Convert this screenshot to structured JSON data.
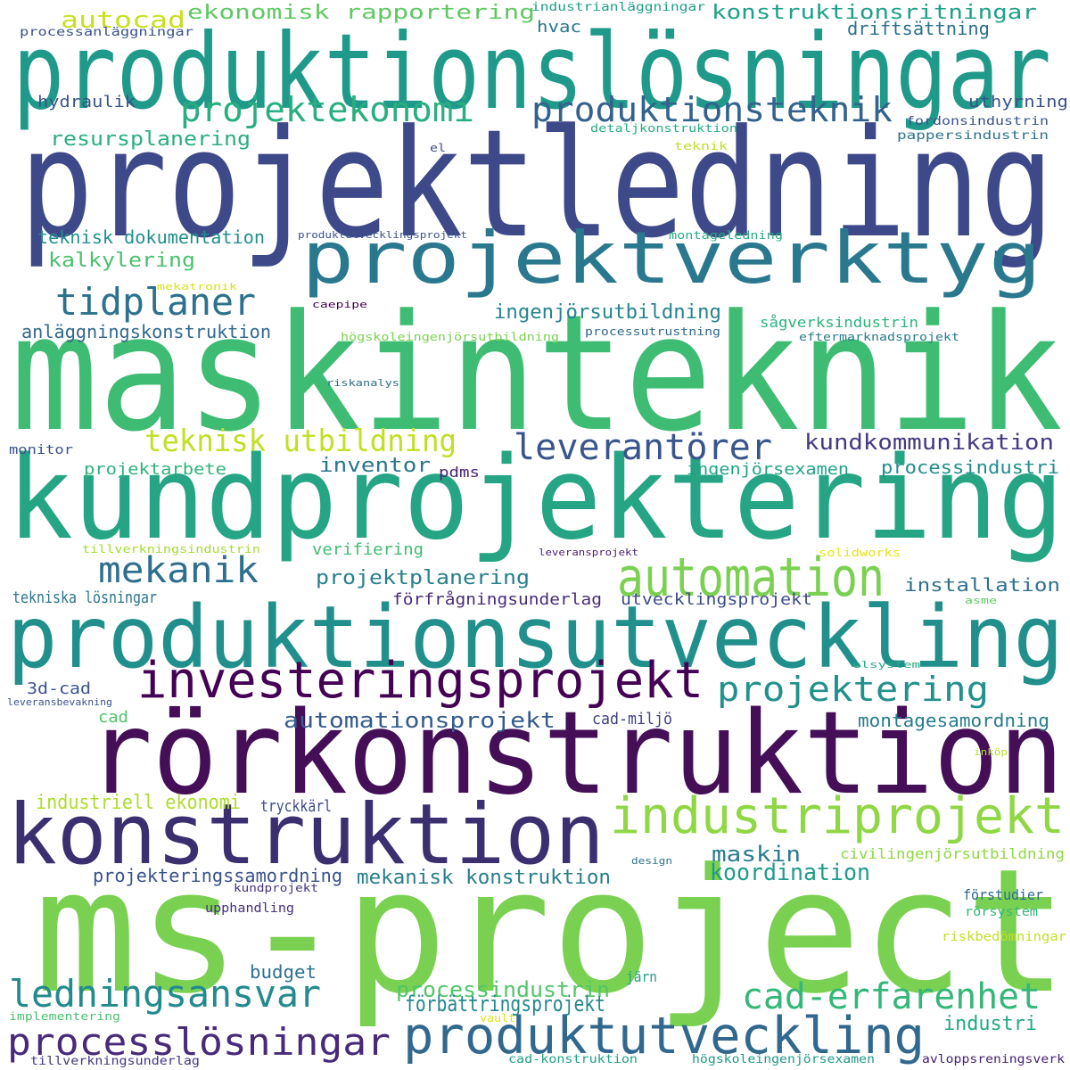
{
  "words": [
    {
      "text": "produktionslösningar",
      "color": "#1f9a8a"
    },
    {
      "text": "projektledning",
      "color": "#3e4989"
    },
    {
      "text": "maskinteknik",
      "color": "#3fbc73"
    },
    {
      "text": "kundprojektering",
      "color": "#25a584"
    },
    {
      "text": "produktionsutveckling",
      "color": "#21908d"
    },
    {
      "text": "rörkonstruktion",
      "color": "#440f56"
    },
    {
      "text": "ms-project",
      "color": "#7ad151"
    },
    {
      "text": "konstruktion",
      "color": "#3b2f70"
    },
    {
      "text": "projektverktyg",
      "color": "#2a788e"
    },
    {
      "text": "industriprojekt",
      "color": "#8fd744"
    },
    {
      "text": "investeringsprojekt",
      "color": "#440154"
    },
    {
      "text": "automation",
      "color": "#7ad151"
    },
    {
      "text": "produktutveckling",
      "color": "#31688e"
    },
    {
      "text": "processlösningar",
      "color": "#472a7a"
    },
    {
      "text": "ledningsansvar",
      "color": "#238a8d"
    },
    {
      "text": "cad-erfarenhet",
      "color": "#35b779"
    },
    {
      "text": "tidplaner",
      "color": "#2c728e"
    },
    {
      "text": "projektekonomi",
      "color": "#29af7f"
    },
    {
      "text": "produktionsteknik",
      "color": "#33628d"
    },
    {
      "text": "leverantörer",
      "color": "#39558c"
    },
    {
      "text": "mekanik",
      "color": "#2e6f8e"
    },
    {
      "text": "projektering",
      "color": "#21918c"
    },
    {
      "text": "teknisk utbildning",
      "color": "#c2df23"
    },
    {
      "text": "automationsprojekt",
      "color": "#365c8d"
    },
    {
      "text": "mekanisk konstruktion",
      "color": "#287d8e"
    },
    {
      "text": "koordination",
      "color": "#1e9b8a"
    },
    {
      "text": "maskin",
      "color": "#297b8e"
    },
    {
      "text": "processindustrin",
      "color": "#52c569"
    },
    {
      "text": "förbättringsprojekt",
      "color": "#24878e"
    },
    {
      "text": "industri",
      "color": "#22a884"
    },
    {
      "text": "montagesamordning",
      "color": "#287c8e"
    },
    {
      "text": "kundkommunikation",
      "color": "#443a83"
    },
    {
      "text": "ingenjörsutbildning",
      "color": "#25848e"
    },
    {
      "text": "projektplanering",
      "color": "#277f8e"
    },
    {
      "text": "industriell ekonomi",
      "color": "#addc30"
    },
    {
      "text": "projekteringssamordning",
      "color": "#3b528b"
    },
    {
      "text": "ekonomisk rapportering",
      "color": "#5ec962"
    },
    {
      "text": "konstruktionsritningar",
      "color": "#1fa188"
    },
    {
      "text": "autocad",
      "color": "#c8e020"
    },
    {
      "text": "driftsättning",
      "color": "#2c718e"
    },
    {
      "text": "resursplanering",
      "color": "#29af7f"
    },
    {
      "text": "teknisk dokumentation",
      "color": "#218f8d"
    },
    {
      "text": "kalkylering",
      "color": "#4ac16d"
    },
    {
      "text": "anläggningskonstruktion",
      "color": "#31688e"
    },
    {
      "text": "inventor",
      "color": "#2a768e"
    },
    {
      "text": "installation",
      "color": "#2d708e"
    },
    {
      "text": "processindustri",
      "color": "#218e8d"
    },
    {
      "text": "ingenjörsexamen",
      "color": "#20a486"
    },
    {
      "text": "projektarbete",
      "color": "#2eb37c"
    },
    {
      "text": "verifiering",
      "color": "#40bd72"
    },
    {
      "text": "förfrågningsunderlag",
      "color": "#472c7a"
    },
    {
      "text": "utvecklingsprojekt",
      "color": "#3e4c8a"
    },
    {
      "text": "tekniska lösningar",
      "color": "#2c738e"
    },
    {
      "text": "budget",
      "color": "#2d718e"
    },
    {
      "text": "hydraulik",
      "color": "#3b528b"
    },
    {
      "text": "uthyrning",
      "color": "#3b528b"
    },
    {
      "text": "hvac",
      "color": "#2a778e"
    },
    {
      "text": "sågverksindustrin",
      "color": "#2db27d"
    },
    {
      "text": "cad-miljö",
      "color": "#424186"
    },
    {
      "text": "tryckkärl",
      "color": "#3e4a89"
    },
    {
      "text": "3d-cad",
      "color": "#3b528b"
    },
    {
      "text": "cad",
      "color": "#52c569"
    },
    {
      "text": "pdms",
      "color": "#482475"
    },
    {
      "text": "upphandling",
      "color": "#472f7d"
    },
    {
      "text": "förstudier",
      "color": "#31688e"
    },
    {
      "text": "civilingenjörsutbildning",
      "color": "#8fd744"
    },
    {
      "text": "kundprojekt",
      "color": "#46337e"
    },
    {
      "text": "rörsystem",
      "color": "#35b779"
    },
    {
      "text": "riskbedömningar",
      "color": "#c2df23"
    },
    {
      "text": "järn",
      "color": "#1f9f88"
    },
    {
      "text": "implementering",
      "color": "#4ac16d"
    },
    {
      "text": "vault",
      "color": "#dde318"
    },
    {
      "text": "tillverkningsunderlag",
      "color": "#453781"
    },
    {
      "text": "cad-konstruktion",
      "color": "#20a386"
    },
    {
      "text": "högskoleingenjörsexamen",
      "color": "#1f998a"
    },
    {
      "text": "avloppsreningsverk",
      "color": "#482173"
    },
    {
      "text": "industrianläggningar",
      "color": "#1f9e89"
    },
    {
      "text": "processanläggningar",
      "color": "#3b528b"
    },
    {
      "text": "fordonsindustrin",
      "color": "#3b528b"
    },
    {
      "text": "pappersindustrin",
      "color": "#2c728e"
    },
    {
      "text": "detaljkonstruktion",
      "color": "#27ad81"
    },
    {
      "text": "teknik",
      "color": "#bddf26"
    },
    {
      "text": "el",
      "color": "#3b528b"
    },
    {
      "text": "produktutvecklingsprojekt",
      "color": "#3b528b"
    },
    {
      "text": "montageledning",
      "color": "#25ac82"
    },
    {
      "text": "mekatronik",
      "color": "#d8e219"
    },
    {
      "text": "caepipe",
      "color": "#440154"
    },
    {
      "text": "högskoleingenjörsutbildning",
      "color": "#7ad151"
    },
    {
      "text": "processutrustning",
      "color": "#31688e"
    },
    {
      "text": "eftermarknadsprojekt",
      "color": "#287c8e"
    },
    {
      "text": "riskanalys",
      "color": "#2e6e8e"
    },
    {
      "text": "monitor",
      "color": "#3b528b"
    },
    {
      "text": "tillverkningsindustrin",
      "color": "#a5db36"
    },
    {
      "text": "leveransprojekt",
      "color": "#481f70"
    },
    {
      "text": "solidworks",
      "color": "#e5e419"
    },
    {
      "text": "asme",
      "color": "#5ec962"
    },
    {
      "text": "elsystem",
      "color": "#22a884"
    },
    {
      "text": "leveransbevakning",
      "color": "#3b528b"
    },
    {
      "text": "inköp",
      "color": "#b5de2b"
    },
    {
      "text": "design",
      "color": "#2c728e"
    }
  ]
}
